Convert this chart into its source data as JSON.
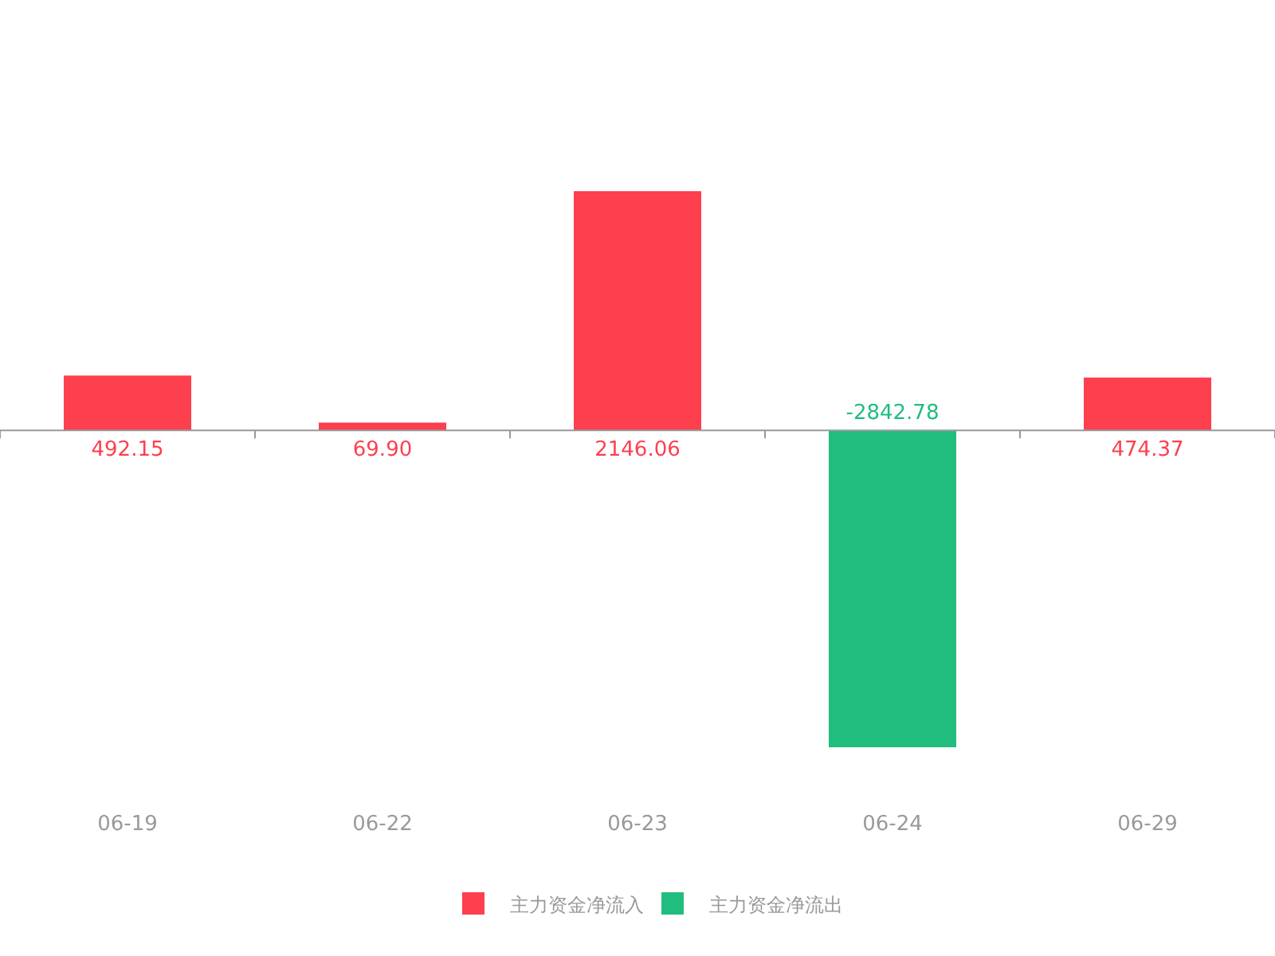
{
  "chart_data": {
    "type": "bar",
    "stacked": true,
    "legend": "bottom",
    "categories": [
      "06-19",
      "06-22",
      "06-23",
      "06-24",
      "06-29"
    ],
    "series": [
      {
        "name": "主力资金净流入",
        "color": "#fd3f4e",
        "values": [
          492.15,
          69.9,
          2146.06,
          null,
          474.37
        ],
        "value_labels": [
          "492.15",
          "69.90",
          "2146.06",
          null,
          "474.37"
        ]
      },
      {
        "name": "主力资金净流出",
        "color": "#20bd7f",
        "values": [
          null,
          null,
          null,
          -2842.78,
          null
        ],
        "value_labels": [
          null,
          null,
          null,
          "-2842.78",
          null
        ]
      }
    ]
  }
}
